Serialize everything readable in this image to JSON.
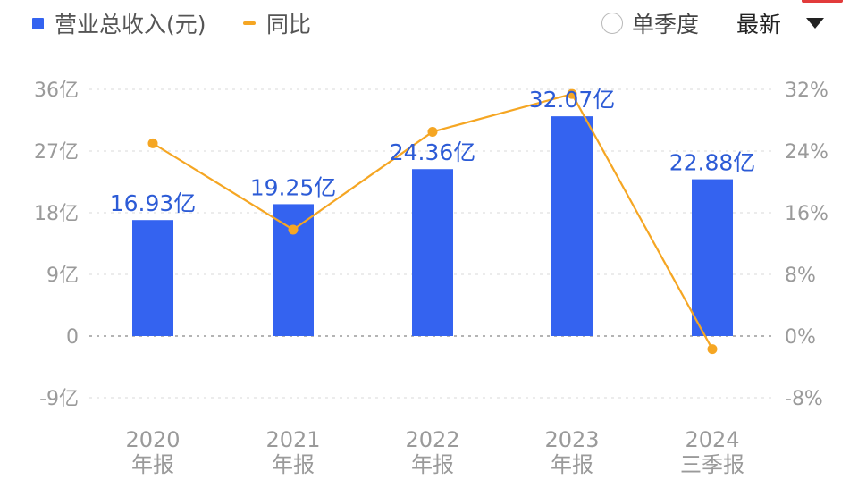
{
  "header": {
    "legend": [
      {
        "label": "营业总收入(元)",
        "icon": "blue-square",
        "color": "#3463F0"
      },
      {
        "label": "同比",
        "icon": "orange-dash",
        "color": "#F5A623"
      }
    ],
    "single_quarter_label": "单季度",
    "latest_label": "最新"
  },
  "colors": {
    "bar": "#3463F0",
    "line": "#F5A623",
    "axis_text": "#9a9a9a",
    "value_label": "#2c5bd6",
    "grid": "#e6e6e6"
  },
  "chart_data": {
    "type": "bar+line",
    "categories": [
      {
        "year": "2020",
        "period": "年报"
      },
      {
        "year": "2021",
        "period": "年报"
      },
      {
        "year": "2022",
        "period": "年报"
      },
      {
        "year": "2023",
        "period": "年报"
      },
      {
        "year": "2024",
        "period": "三季报"
      }
    ],
    "series": [
      {
        "name": "营业总收入(元)",
        "type": "bar",
        "axis": "left",
        "values": [
          16.93,
          19.25,
          24.36,
          32.07,
          22.88
        ],
        "labels": [
          "16.93亿",
          "19.25亿",
          "24.36亿",
          "32.07亿",
          "22.88亿"
        ]
      },
      {
        "name": "同比",
        "type": "line",
        "axis": "right",
        "values": [
          25.0,
          13.8,
          26.5,
          31.4,
          -1.7
        ]
      }
    ],
    "left_axis": {
      "min": -9,
      "max": 36,
      "ticks": [
        36,
        27,
        18,
        9,
        0,
        -9
      ],
      "tick_labels": [
        "36亿",
        "27亿",
        "18亿",
        "9亿",
        "0",
        "-9亿"
      ]
    },
    "right_axis": {
      "min": -8,
      "max": 32,
      "ticks": [
        32,
        24,
        16,
        8,
        0,
        -8
      ],
      "tick_labels": [
        "32%",
        "24%",
        "16%",
        "8%",
        "0%",
        "-8%"
      ]
    },
    "grid": true
  }
}
